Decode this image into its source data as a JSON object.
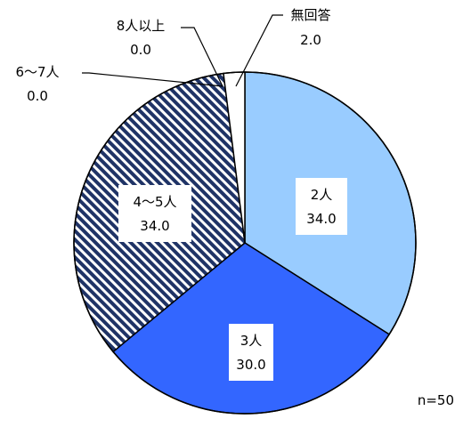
{
  "chart_data": {
    "type": "pie",
    "n_label": "n=50",
    "start_angle_deg": 0,
    "direction": "clockwise",
    "slices": [
      {
        "name": "2人",
        "value": 34.0,
        "value_label": "34.0",
        "color": "#99ccff",
        "pattern": "solid"
      },
      {
        "name": "3人",
        "value": 30.0,
        "value_label": "30.0",
        "color": "#3366ff",
        "pattern": "solid"
      },
      {
        "name": "4～5人",
        "value": 34.0,
        "value_label": "34.0",
        "color": "#1f3366",
        "pattern": "diagonal-stripes"
      },
      {
        "name": "6～7人",
        "value": 0.0,
        "value_label": "0.0",
        "color": "#ffffff",
        "pattern": "solid"
      },
      {
        "name": "8人以上",
        "value": 0.0,
        "value_label": "0.0",
        "color": "#ffffff",
        "pattern": "solid"
      },
      {
        "name": "無回答",
        "value": 2.0,
        "value_label": "2.0",
        "color": "#ffffff",
        "pattern": "solid"
      }
    ]
  }
}
